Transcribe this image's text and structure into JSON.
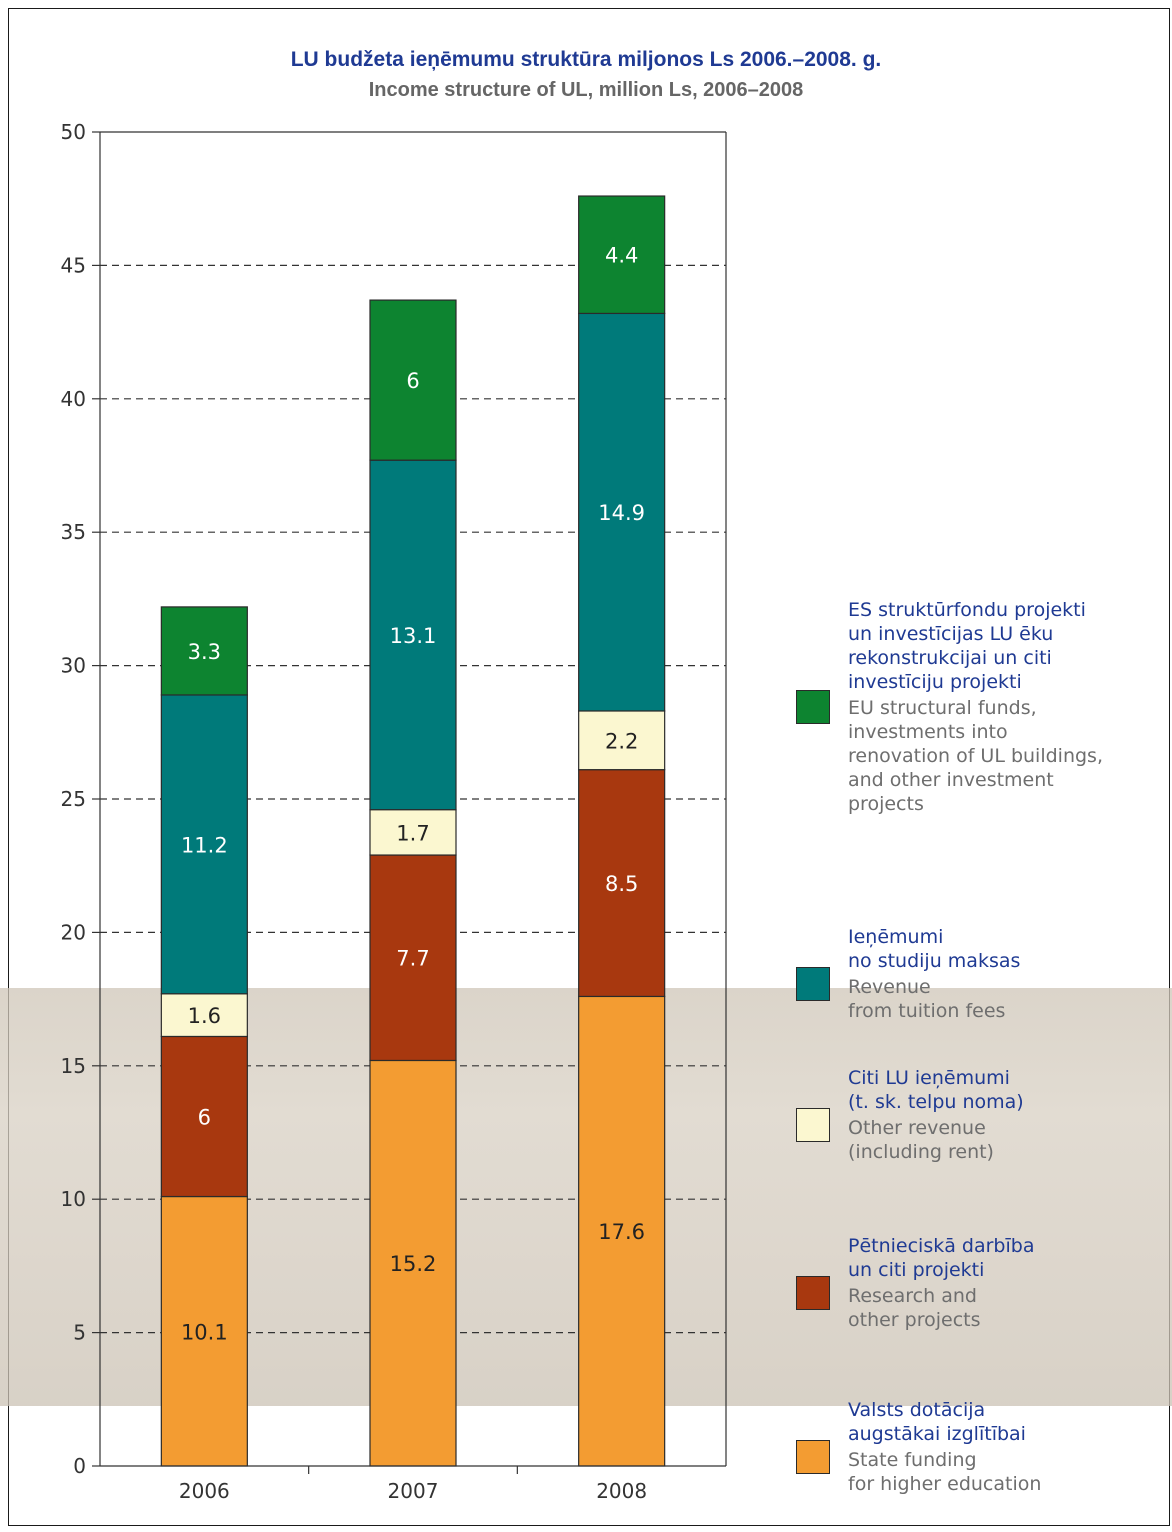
{
  "chart_data": {
    "type": "bar",
    "stacked": true,
    "title": "LU budžeta ieņēmumu struktūra miljonos Ls 2006.–2008. g.",
    "subtitle": "Income structure of UL, million Ls, 2006–2008",
    "categories": [
      "2006",
      "2007",
      "2008"
    ],
    "ylim": [
      0,
      50
    ],
    "yticks": [
      "0",
      "5",
      "10",
      "15",
      "20",
      "25",
      "30",
      "35",
      "40",
      "45",
      "50"
    ],
    "grid": "horizontal dashed",
    "legend_position": "right",
    "series": [
      {
        "name_lv": "Valsts dotācija\naugstākai izglītībai",
        "name_en": "State funding\nfor higher education",
        "color": "#f39c32",
        "label_color": "#222222",
        "values": [
          10.1,
          15.2,
          17.6
        ]
      },
      {
        "name_lv": "Pētnieciskā darbība\nun citi projekti",
        "name_en": "Research and\nother projects",
        "color": "#a8380f",
        "label_color": "#ffffff",
        "values": [
          6,
          7.7,
          8.5
        ]
      },
      {
        "name_lv": "Citi LU ieņēmumi\n(t. sk. telpu noma)",
        "name_en": "Other revenue\n(including rent)",
        "color": "#fbf7d0",
        "label_color": "#222222",
        "values": [
          1.6,
          1.7,
          2.2
        ]
      },
      {
        "name_lv": "Ieņēmumi\nno studiju maksas",
        "name_en": "Revenue\nfrom tuition fees",
        "color": "#007a7a",
        "label_color": "#ffffff",
        "values": [
          11.2,
          13.1,
          14.9
        ]
      },
      {
        "name_lv": "ES struktūrfondu projekti\nun investīcijas LU ēku\nrekonstrukcijai un citi\ninvestīciju projekti",
        "name_en": "EU structural funds,\ninvestments into\nrenovation of UL buildings,\nand other investment\nprojects",
        "color": "#0d8430",
        "label_color": "#ffffff",
        "values": [
          3.3,
          6,
          4.4
        ]
      }
    ]
  }
}
